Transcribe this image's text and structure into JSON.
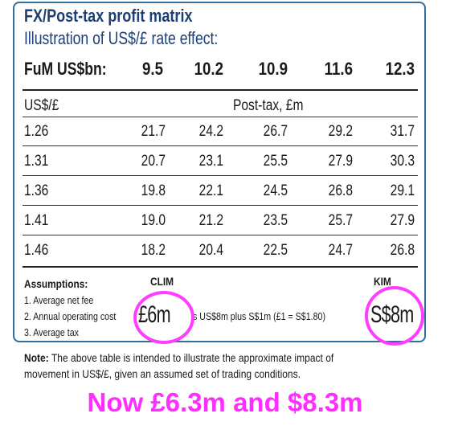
{
  "table": {
    "title": "FX/Post-tax profit matrix",
    "subtitle": "Illustration of US$/£ rate effect:",
    "fum_label": "FuM US$bn:",
    "fum_values": [
      "9.5",
      "10.2",
      "10.9",
      "11.6",
      "12.3"
    ],
    "row_header": "US$/£",
    "value_header": "Post-tax, £m",
    "rows": [
      {
        "rate": "1.26",
        "values": [
          "21.7",
          "24.2",
          "26.7",
          "29.2",
          "31.7"
        ]
      },
      {
        "rate": "1.31",
        "values": [
          "20.7",
          "23.1",
          "25.5",
          "27.9",
          "30.3"
        ]
      },
      {
        "rate": "1.36",
        "values": [
          "19.8",
          "22.1",
          "24.5",
          "26.8",
          "29.1"
        ]
      },
      {
        "rate": "1.41",
        "values": [
          "19.0",
          "21.2",
          "23.5",
          "25.7",
          "27.9"
        ]
      },
      {
        "rate": "1.46",
        "values": [
          "18.2",
          "20.4",
          "22.5",
          "24.7",
          "26.8"
        ]
      }
    ]
  },
  "assumptions": {
    "title": "Assumptions:",
    "clim_label": "CLIM",
    "kim_label": "KIM",
    "line1": "1. Average net fee",
    "line2_start": "2. Annual operating cost",
    "line2_end": "s US$8m plus S$1m (£1 = S$1.80)",
    "line3": "3. Average tax",
    "clim_value": "£6m",
    "kim_value": "S$8m"
  },
  "note": {
    "label": "Note:",
    "line1": "The above table is intended to illustrate the approximate impact of",
    "line2": "movement in US$/£, given an assumed set of trading conditions."
  },
  "overlay_text": "Now £6.3m and $8.3m",
  "colors": {
    "frame": "#2f6f9f",
    "title": "#1d3f73",
    "highlight": "#ff3cff",
    "overlay": "#ff2dff"
  }
}
